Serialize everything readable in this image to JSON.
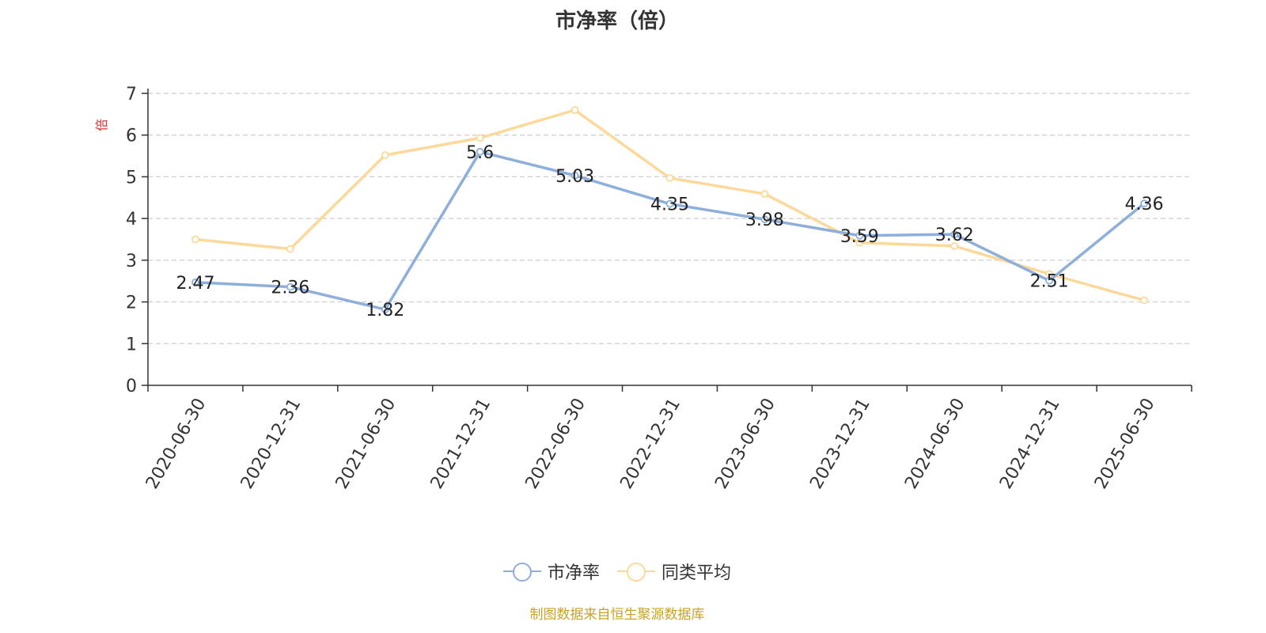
{
  "chart_data": {
    "type": "line",
    "title": "市净率（倍）",
    "ylabel": "倍",
    "xlabel": "",
    "ylim": [
      0,
      7
    ],
    "yticks": [
      0,
      1,
      2,
      3,
      4,
      5,
      6,
      7
    ],
    "grid": true,
    "legend_placement": "bottom",
    "categories": [
      "2020-06-30",
      "2020-12-31",
      "2021-06-30",
      "2021-12-31",
      "2022-06-30",
      "2022-12-31",
      "2023-06-30",
      "2023-12-31",
      "2024-06-30",
      "2024-12-31",
      "2025-06-30"
    ],
    "series": [
      {
        "name": "市净率",
        "color": "#8eaedb",
        "values": [
          2.47,
          2.36,
          1.82,
          5.6,
          5.03,
          4.35,
          3.98,
          3.59,
          3.62,
          2.51,
          4.36
        ],
        "labels": [
          "2.47",
          "2.36",
          "1.82",
          "5.6",
          "5.03",
          "4.35",
          "3.98",
          "3.59",
          "3.62",
          "2.51",
          "4.36"
        ]
      },
      {
        "name": "同类平均",
        "color": "#fcd99a",
        "values": [
          3.5,
          3.27,
          5.52,
          5.93,
          6.6,
          4.97,
          4.59,
          3.42,
          3.34,
          2.67,
          2.04
        ]
      }
    ]
  },
  "source_note": "制图数据来自恒生聚源数据库",
  "ylabel_color": "#e0302e",
  "source_color": "#c9a227"
}
